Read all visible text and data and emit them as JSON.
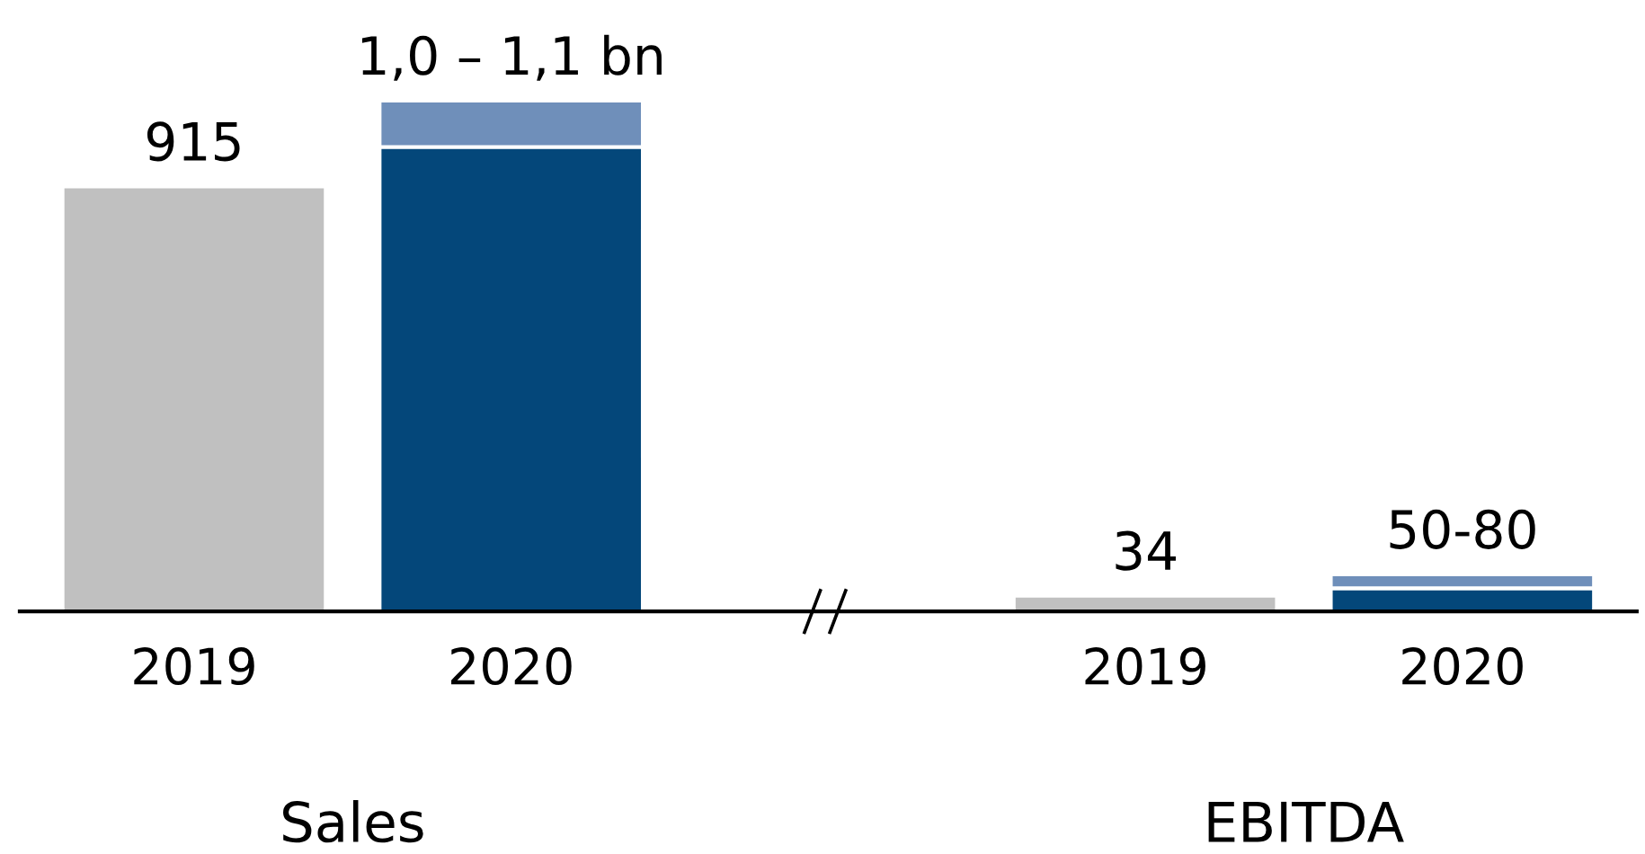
{
  "chart_data": {
    "type": "bar",
    "stacked": true,
    "categories": [
      "2019",
      "2020",
      null,
      "2019",
      "2020"
    ],
    "series": [
      {
        "colors": [
          "#c0c0c0",
          "#04477a",
          null,
          "#c0c0c0",
          "#04477a"
        ],
        "values": [
          915,
          1000,
          null,
          34,
          50
        ],
        "value_labels": [
          "915",
          null,
          null,
          "34",
          null
        ]
      },
      {
        "color": "#6f8fba",
        "values": [
          null,
          100,
          null,
          null,
          30
        ]
      }
    ],
    "annotations": [
      {
        "text": "1,0 – 1,1 bn",
        "y": 1100
      },
      {
        "text": "50-80",
        "y": 80
      },
      "Sales",
      "EBITDA"
    ],
    "grid": false,
    "legend": false
  }
}
